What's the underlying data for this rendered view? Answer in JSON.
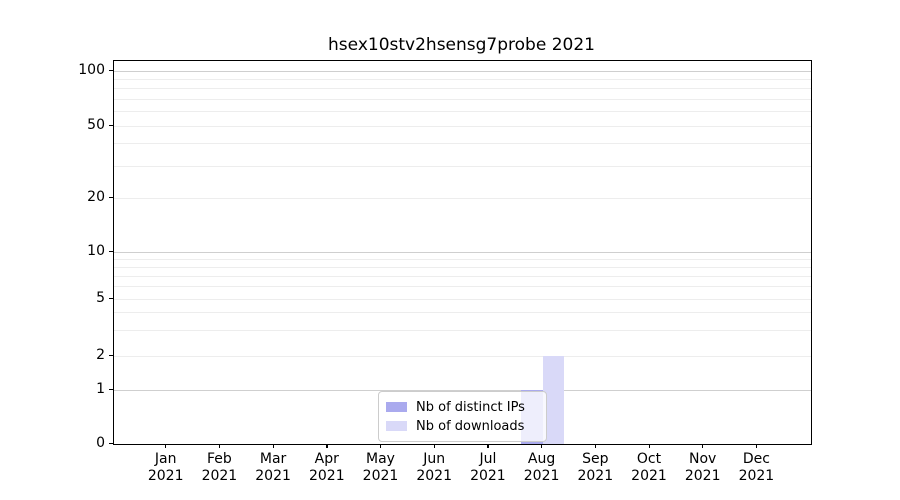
{
  "title": "hsex10stv2hsensg7probe 2021",
  "chart_data": {
    "type": "bar",
    "title": "hsex10stv2hsensg7probe 2021",
    "categories": [
      {
        "month": "Jan",
        "year": "2021"
      },
      {
        "month": "Feb",
        "year": "2021"
      },
      {
        "month": "Mar",
        "year": "2021"
      },
      {
        "month": "Apr",
        "year": "2021"
      },
      {
        "month": "May",
        "year": "2021"
      },
      {
        "month": "Jun",
        "year": "2021"
      },
      {
        "month": "Jul",
        "year": "2021"
      },
      {
        "month": "Aug",
        "year": "2021"
      },
      {
        "month": "Sep",
        "year": "2021"
      },
      {
        "month": "Oct",
        "year": "2021"
      },
      {
        "month": "Nov",
        "year": "2021"
      },
      {
        "month": "Dec",
        "year": "2021"
      }
    ],
    "series": [
      {
        "name": "Nb of distinct IPs",
        "color": "#aaaaee",
        "values": [
          0,
          0,
          0,
          0,
          0,
          0,
          0,
          1,
          0,
          0,
          0,
          0
        ]
      },
      {
        "name": "Nb of downloads",
        "color": "#d9d9f8",
        "values": [
          0,
          0,
          0,
          0,
          0,
          0,
          0,
          2,
          0,
          0,
          0,
          0
        ]
      }
    ],
    "yaxis": {
      "scale": "symlog",
      "tick_values": [
        0,
        1,
        2,
        5,
        10,
        20,
        50,
        100
      ],
      "tick_labels": [
        "0",
        "1",
        "2",
        "5",
        "10",
        "20",
        "50",
        "100"
      ],
      "decade_tick_values": [
        1,
        10,
        100
      ],
      "minor_gridline_values": [
        3,
        4,
        6,
        7,
        8,
        9,
        30,
        40,
        60,
        70,
        80,
        90
      ],
      "ylim_bottom": 0
    },
    "xlabel": "",
    "ylabel": "",
    "grid": "horizontal",
    "legend_position": "bottom-center"
  },
  "legend": {
    "items": [
      {
        "label": "Nb of distinct IPs",
        "color": "#aaaaee"
      },
      {
        "label": "Nb of downloads",
        "color": "#d9d9f8"
      }
    ]
  },
  "colors": {
    "bar_distinct_ips": "#aaaaee",
    "bar_downloads": "#d9d9f8",
    "grid_major": "#cfcfcf",
    "grid_minor": "#ededed",
    "axis_spine": "#000000",
    "background": "#ffffff"
  }
}
